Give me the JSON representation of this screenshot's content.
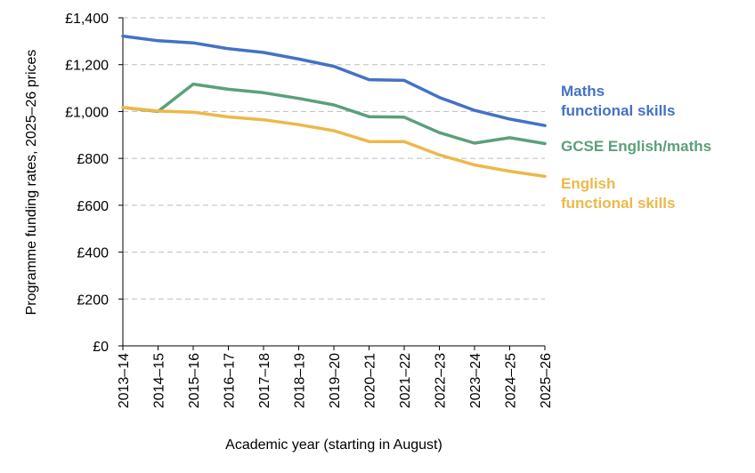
{
  "chart_data": {
    "type": "line",
    "title": "",
    "xlabel": "Academic year (starting in August)",
    "ylabel": "Programme funding rates, 2025–26 prices",
    "ylim": [
      0,
      1400
    ],
    "yticks": [
      0,
      200,
      400,
      600,
      800,
      1000,
      1200,
      1400
    ],
    "ytick_labels": [
      "£0",
      "£200",
      "£400",
      "£600",
      "£800",
      "£1,000",
      "£1,200",
      "£1,400"
    ],
    "grid": true,
    "legend": "direct labels at right",
    "categories": [
      "2013–14",
      "2014–15",
      "2015–16",
      "2016–17",
      "2017–18",
      "2018–19",
      "2019–20",
      "2020–21",
      "2021–22",
      "2022–23",
      "2023–24",
      "2024–25",
      "2025–26"
    ],
    "series": [
      {
        "name": "Maths functional skills",
        "label_lines": [
          "Maths",
          "functional skills"
        ],
        "color": "#4472C4",
        "values": [
          1322,
          1302,
          1293,
          1268,
          1252,
          1224,
          1193,
          1136,
          1133,
          1060,
          1005,
          968,
          940
        ]
      },
      {
        "name": "GCSE English/maths",
        "label_lines": [
          "GCSE English/maths"
        ],
        "color": "#5BA07A",
        "values": [
          1017,
          1000,
          1117,
          1095,
          1080,
          1056,
          1028,
          978,
          976,
          910,
          865,
          888,
          863
        ]
      },
      {
        "name": "English functional skills",
        "label_lines": [
          "English",
          "functional skills"
        ],
        "color": "#EDB84A",
        "values": [
          1017,
          1002,
          997,
          977,
          965,
          944,
          918,
          872,
          872,
          815,
          772,
          745,
          723
        ]
      }
    ]
  }
}
